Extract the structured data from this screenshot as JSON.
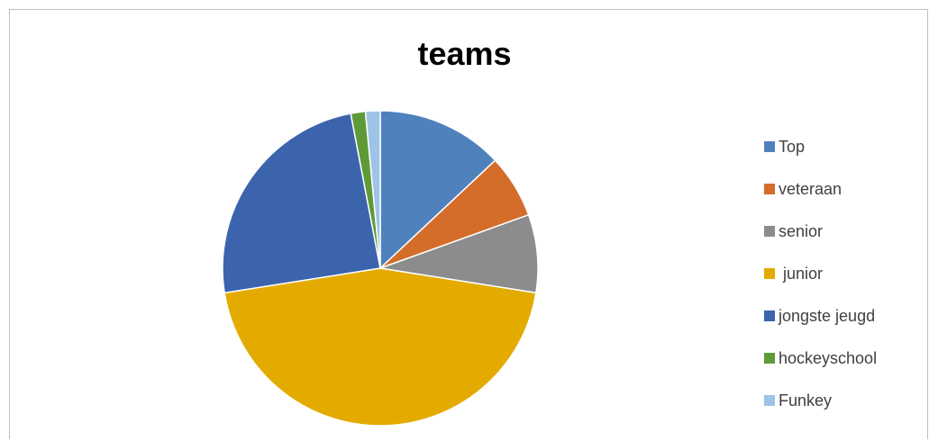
{
  "chart_data": {
    "type": "pie",
    "title": "teams",
    "legend_position": "right",
    "categories": [
      "Top",
      "veteraan",
      "senior",
      " junior",
      "jongste jeugd",
      "hockeyschool",
      "Funkey"
    ],
    "values": [
      13,
      6.5,
      8,
      45,
      24.5,
      1.5,
      1.5
    ],
    "colors": [
      "#4f81bd",
      "#d46c2a",
      "#8c8c8c",
      "#e3ab00",
      "#3b64ad",
      "#5e9a38",
      "#9dc3e6"
    ]
  }
}
